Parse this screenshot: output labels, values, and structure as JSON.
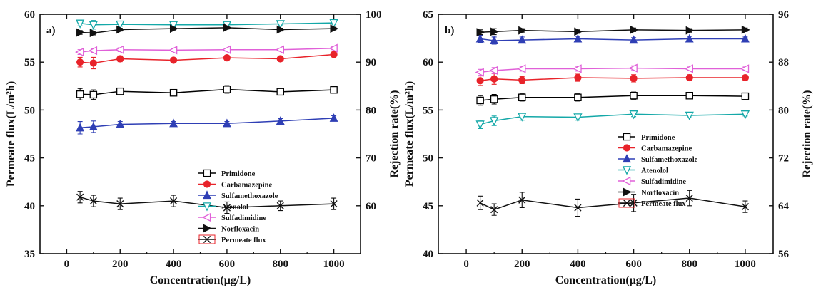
{
  "chart_data": [
    {
      "type": "line",
      "panel_label": "a)",
      "xlabel": "Concentration(μg/L)",
      "ylabel": "Permeate flux(L/m²h)",
      "y2label": "Rejection rate(%)",
      "xlim": [
        -100,
        1100
      ],
      "xticks": [
        0,
        200,
        400,
        600,
        800,
        1000
      ],
      "ylim": [
        35,
        60
      ],
      "yticks": [
        35,
        40,
        45,
        50,
        55,
        60
      ],
      "y2lim": [
        50,
        100
      ],
      "y2ticks": [
        60,
        70,
        80,
        90,
        100
      ],
      "x": [
        50,
        100,
        200,
        400,
        600,
        800,
        1000
      ],
      "legend_position": "center-right",
      "series": [
        {
          "name": "Primidone",
          "axis": "right",
          "marker": "square-open",
          "color": "#000000",
          "values": [
            83.3,
            83.2,
            83.9,
            83.6,
            84.3,
            83.8,
            84.2
          ],
          "err": [
            1.2,
            1.0,
            0.6,
            0.3,
            0.8,
            0.3,
            0.3
          ]
        },
        {
          "name": "Carbamazepine",
          "axis": "right",
          "marker": "circle-filled",
          "color": "#e8232a",
          "values": [
            90.0,
            89.8,
            90.7,
            90.4,
            90.9,
            90.7,
            91.6
          ],
          "err": [
            1.0,
            1.2,
            0.6,
            0.4,
            0.5,
            0.4,
            0.5
          ]
        },
        {
          "name": "Sulfamethoxazole",
          "axis": "right",
          "marker": "triangle-up-filled",
          "color": "#2f3fb5",
          "values": [
            76.3,
            76.5,
            77.0,
            77.2,
            77.2,
            77.7,
            78.3
          ],
          "err": [
            1.3,
            1.2,
            0.6,
            0.4,
            0.4,
            0.5,
            0.5
          ]
        },
        {
          "name": "Atenolol",
          "axis": "right",
          "marker": "triangle-down-open",
          "color": "#14a8a8",
          "values": [
            98.1,
            97.8,
            97.9,
            97.8,
            97.8,
            98.0,
            98.2
          ],
          "err": [
            0.5,
            0.9,
            0.4,
            0.4,
            0.3,
            0.4,
            0.3
          ]
        },
        {
          "name": "Sulfadimidine",
          "axis": "right",
          "marker": "triangle-left-open",
          "color": "#e060d8",
          "values": [
            92.1,
            92.4,
            92.6,
            92.5,
            92.6,
            92.6,
            92.9
          ],
          "err": [
            0.5,
            0.4,
            0.4,
            0.3,
            0.3,
            0.3,
            0.3
          ]
        },
        {
          "name": "Norfloxacin",
          "axis": "right",
          "marker": "triangle-right-filled",
          "color": "#111111",
          "values": [
            96.2,
            96.1,
            96.8,
            97.0,
            97.2,
            96.8,
            97.0
          ],
          "err": [
            0.4,
            0.4,
            0.3,
            0.3,
            0.3,
            0.3,
            0.3
          ]
        },
        {
          "name": "Permeate flux",
          "axis": "left",
          "marker": "x",
          "color": "#111111",
          "values": [
            40.9,
            40.5,
            40.2,
            40.5,
            39.8,
            40.0,
            40.2
          ],
          "err": [
            0.6,
            0.6,
            0.6,
            0.6,
            0.6,
            0.5,
            0.6
          ]
        }
      ]
    },
    {
      "type": "line",
      "panel_label": "b)",
      "xlabel": "Concentration(μg/L)",
      "ylabel": "Permeate flux(L/m²h)",
      "y2label": "Rejection rate(%)",
      "xlim": [
        -100,
        1100
      ],
      "xticks": [
        0,
        200,
        400,
        600,
        800,
        1000
      ],
      "ylim": [
        40,
        65
      ],
      "yticks": [
        40,
        45,
        50,
        55,
        60,
        65
      ],
      "y2lim": [
        56,
        96
      ],
      "y2ticks": [
        56,
        64,
        72,
        80,
        88,
        96
      ],
      "x": [
        50,
        100,
        200,
        400,
        600,
        800,
        1000
      ],
      "legend_position": "center-right",
      "series": [
        {
          "name": "Primidone",
          "axis": "right",
          "marker": "square-open",
          "color": "#000000",
          "values": [
            81.6,
            81.8,
            82.1,
            82.1,
            82.4,
            82.4,
            82.3
          ],
          "err": [
            0.8,
            0.8,
            0.6,
            0.6,
            0.6,
            0.5,
            0.4
          ]
        },
        {
          "name": "Carbamazepine",
          "axis": "right",
          "marker": "circle-filled",
          "color": "#e8232a",
          "values": [
            84.9,
            85.2,
            85.0,
            85.4,
            85.3,
            85.4,
            85.4
          ],
          "err": [
            0.8,
            0.9,
            0.6,
            0.6,
            0.6,
            0.5,
            0.4
          ]
        },
        {
          "name": "Sulfamethoxazole",
          "axis": "right",
          "marker": "triangle-up-filled",
          "color": "#2f3fb5",
          "values": [
            91.9,
            91.6,
            91.7,
            91.9,
            91.7,
            91.9,
            91.9
          ],
          "err": [
            0.6,
            0.6,
            0.5,
            0.4,
            0.4,
            0.4,
            0.3
          ]
        },
        {
          "name": "Atenolol",
          "axis": "right",
          "marker": "triangle-down-open",
          "color": "#14a8a8",
          "values": [
            77.6,
            78.2,
            78.9,
            78.8,
            79.3,
            79.1,
            79.3
          ],
          "err": [
            0.7,
            0.8,
            0.6,
            0.5,
            0.4,
            0.4,
            0.3
          ]
        },
        {
          "name": "Sulfadimidine",
          "axis": "right",
          "marker": "triangle-left-open",
          "color": "#e060d8",
          "values": [
            86.3,
            86.6,
            86.9,
            86.9,
            87.0,
            86.9,
            86.9
          ],
          "err": [
            0.5,
            0.5,
            0.4,
            0.4,
            0.4,
            0.3,
            0.3
          ]
        },
        {
          "name": "Norfloxacin",
          "axis": "right",
          "marker": "triangle-right-filled",
          "color": "#111111",
          "values": [
            93.0,
            93.1,
            93.3,
            93.1,
            93.4,
            93.3,
            93.4
          ],
          "err": [
            0.4,
            0.5,
            0.3,
            0.3,
            0.3,
            0.3,
            0.3
          ]
        },
        {
          "name": "Permeate flux",
          "axis": "left",
          "marker": "x",
          "color": "#111111",
          "values": [
            45.3,
            44.6,
            45.6,
            44.8,
            45.3,
            45.8,
            44.9
          ],
          "err": [
            0.7,
            0.6,
            0.8,
            0.9,
            0.9,
            0.8,
            0.6
          ]
        }
      ]
    }
  ]
}
